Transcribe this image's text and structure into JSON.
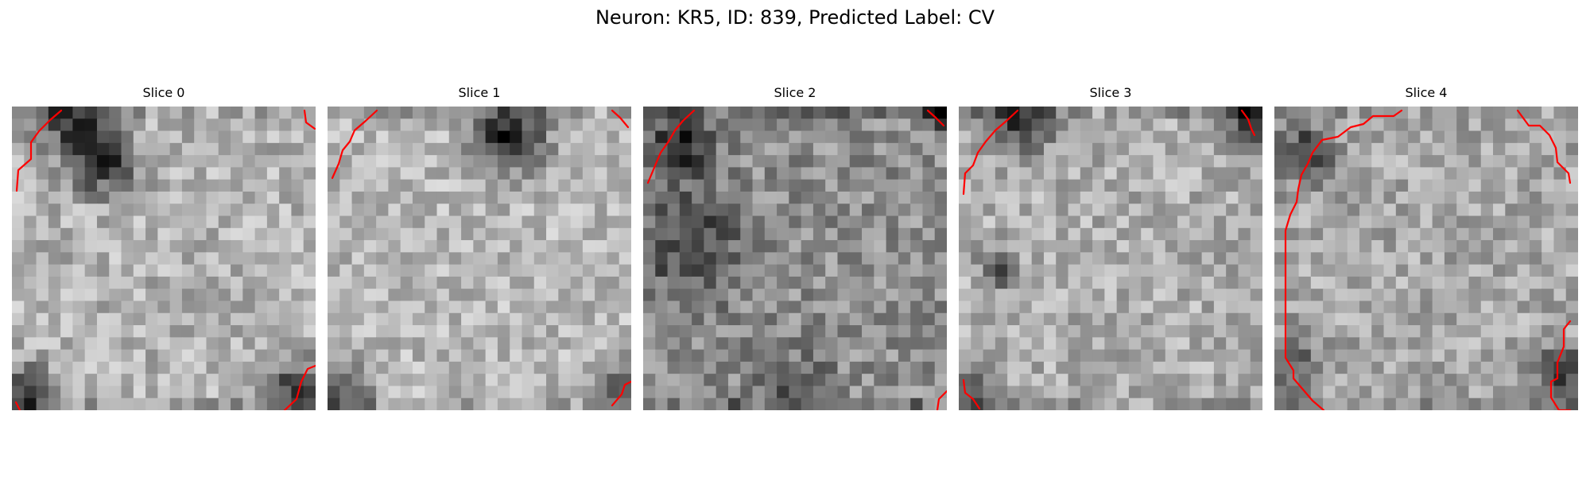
{
  "figure": {
    "title": "Neuron: KR5, ID: 839, Predicted Label: CV"
  },
  "colors": {
    "contour": "#ff0000",
    "colormap": "gray"
  },
  "slices": [
    {
      "title": "Slice 0",
      "seed": 11,
      "mean": 0.7,
      "spread": 0.16,
      "dark_spots": [
        [
          0.3,
          0.18,
          0.1,
          0.55
        ],
        [
          0.04,
          0.94,
          0.09,
          0.45
        ],
        [
          0.93,
          0.92,
          0.09,
          0.45
        ],
        [
          0.2,
          0.04,
          0.12,
          0.45
        ]
      ]
    },
    {
      "title": "Slice 1",
      "seed": 23,
      "mean": 0.72,
      "spread": 0.15,
      "dark_spots": [
        [
          0.6,
          0.1,
          0.11,
          0.65
        ],
        [
          0.05,
          0.93,
          0.09,
          0.4
        ],
        [
          0.96,
          0.92,
          0.08,
          0.35
        ]
      ]
    },
    {
      "title": "Slice 2",
      "seed": 37,
      "mean": 0.56,
      "spread": 0.17,
      "dark_spots": [
        [
          0.12,
          0.12,
          0.1,
          0.45
        ],
        [
          0.15,
          0.45,
          0.18,
          0.3
        ],
        [
          0.97,
          0.02,
          0.05,
          0.6
        ],
        [
          0.5,
          0.95,
          0.12,
          0.25
        ]
      ]
    },
    {
      "title": "Slice 3",
      "seed": 53,
      "mean": 0.68,
      "spread": 0.16,
      "dark_spots": [
        [
          0.2,
          0.02,
          0.12,
          0.5
        ],
        [
          0.95,
          0.05,
          0.07,
          0.55
        ],
        [
          0.13,
          0.53,
          0.05,
          0.6
        ],
        [
          0.06,
          0.95,
          0.07,
          0.4
        ]
      ]
    },
    {
      "title": "Slice 4",
      "seed": 71,
      "mean": 0.66,
      "spread": 0.16,
      "dark_spots": [
        [
          0.1,
          0.15,
          0.1,
          0.4
        ],
        [
          0.95,
          0.9,
          0.1,
          0.45
        ],
        [
          0.06,
          0.85,
          0.1,
          0.3
        ]
      ]
    }
  ]
}
